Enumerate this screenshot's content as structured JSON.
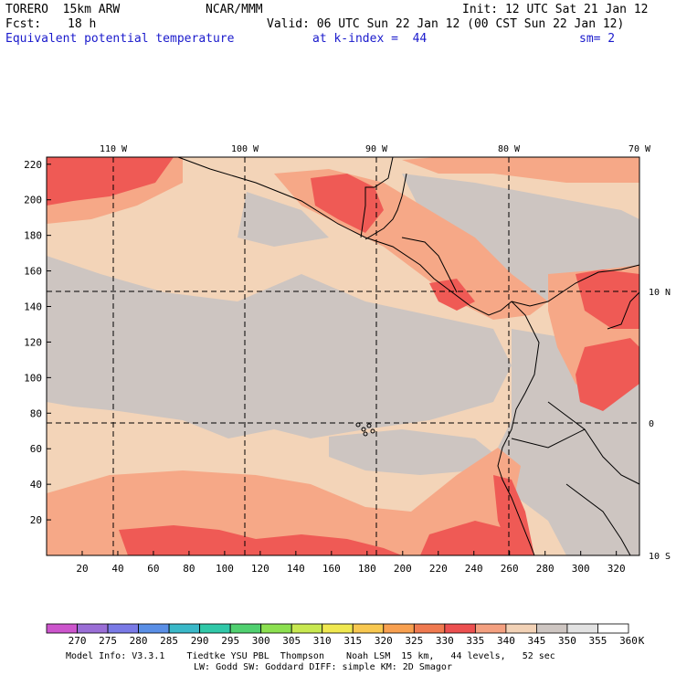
{
  "header": {
    "model": "TORERO  15km ARW",
    "org": "NCAR/MMM",
    "init": "Init: 12 UTC Sat 21 Jan 12",
    "fcst_label": "Fcst:",
    "fcst_value": "18 h",
    "valid": "Valid: 06 UTC Sun 22 Jan 12 (00 CST Sun 22 Jan 12)",
    "field": "Equivalent potential temperature",
    "level": "at k-index =  44",
    "smoothing": "sm= 2"
  },
  "map": {
    "lon_labels": [
      "110 W",
      "100 W",
      "90 W",
      "80 W",
      "70 W"
    ],
    "lat_labels": [
      "10 N",
      "0",
      "10 S"
    ],
    "y_ticks": [
      "220",
      "200",
      "180",
      "160",
      "140",
      "120",
      "100",
      "80",
      "60",
      "40",
      "20"
    ],
    "x_ticks": [
      "20",
      "40",
      "60",
      "80",
      "100",
      "120",
      "140",
      "160",
      "180",
      "200",
      "220",
      "240",
      "260",
      "280",
      "300",
      "320"
    ]
  },
  "colorbar": {
    "levels": [
      "270",
      "275",
      "280",
      "285",
      "290",
      "295",
      "300",
      "305",
      "310",
      "315",
      "320",
      "325",
      "330",
      "335",
      "340",
      "345",
      "350",
      "355",
      "360"
    ],
    "unit": "K",
    "colors": [
      "#cc55cc",
      "#9a6ed6",
      "#7a7ae6",
      "#5a8fe6",
      "#3ab8c8",
      "#30c8a8",
      "#50d070",
      "#8ce050",
      "#c8e850",
      "#f0e850",
      "#f8c850",
      "#f8a050",
      "#f07a50",
      "#ec5050",
      "#f4a080",
      "#f2d2b6",
      "#cec6c2",
      "#e2e2e2",
      "#ffffff"
    ]
  },
  "footer": {
    "line1": "Model Info: V3.3.1    Tiedtke YSU PBL  Thompson    Noah LSM  15 km,   44 levels,   52 sec",
    "line2": "LW: Godd SW: Goddard DIFF: simple KM: 2D Smagor"
  },
  "theme": {
    "peach": "#f3d4b8",
    "gray": "#cdc5c1",
    "salmon": "#f6a887",
    "red": "#ef5a55"
  }
}
